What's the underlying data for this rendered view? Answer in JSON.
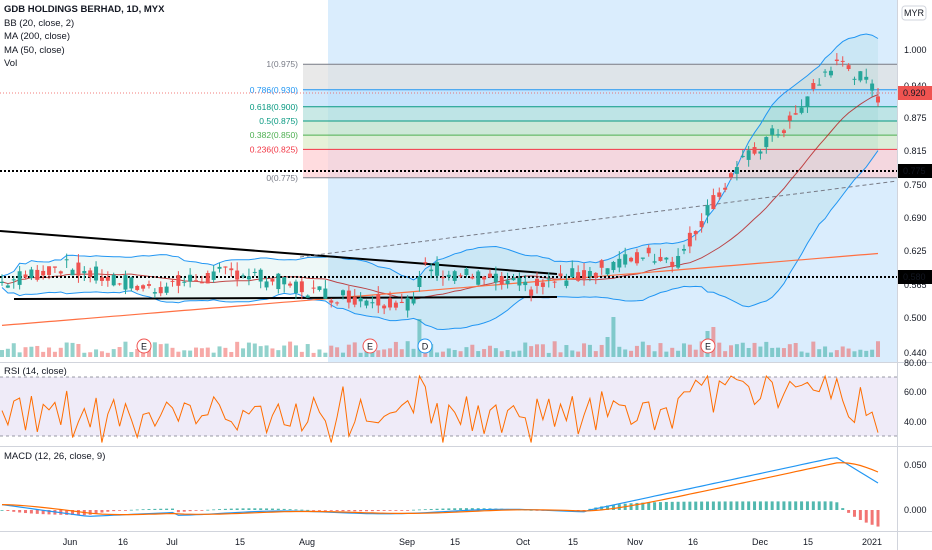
{
  "legend": {
    "symbol": "GDB HOLDINGS BERHAD, 1D, MYX",
    "bb": "BB (20, close, 2)",
    "ma200": "MA (200, close)",
    "ma50": "MA (50, close)",
    "vol": "Vol"
  },
  "currency_badge": "MYR",
  "rsi_label": "RSI (14, close)",
  "macd_label": "MACD (12, 26, close, 9)",
  "chart_data": {
    "type": "candlestick",
    "price_axis": {
      "ticks": [
        "1.000",
        "0.940",
        "0.875",
        "0.815",
        "0.750",
        "0.690",
        "0.625",
        "0.565",
        "0.500",
        "0.440"
      ],
      "range": [
        0.44,
        1.04
      ]
    },
    "last_price": "0.920",
    "support_level": "0.775",
    "support_level_2": "0.580",
    "x_ticks": [
      "Jun",
      "16",
      "Jul",
      "15",
      "Aug",
      "Sep",
      "15",
      "Oct",
      "15",
      "Nov",
      "16",
      "Dec",
      "15",
      "2021"
    ],
    "fib_levels": [
      {
        "label": "1(0.975)",
        "value": 0.975,
        "color": "#787b86"
      },
      {
        "label": "0.786(0.930)",
        "value": 0.93,
        "color": "#2196f3"
      },
      {
        "label": "0.618(0.900)",
        "value": 0.9,
        "color": "#089981"
      },
      {
        "label": "0.5(0.875)",
        "value": 0.875,
        "color": "#089981"
      },
      {
        "label": "0.382(0.850)",
        "value": 0.85,
        "color": "#4caf50"
      },
      {
        "label": "0.236(0.825)",
        "value": 0.825,
        "color": "#f23645"
      },
      {
        "label": "0(0.775)",
        "value": 0.775,
        "color": "#787b86"
      }
    ],
    "event_markers": [
      "E",
      "E",
      "D",
      "E"
    ],
    "rsi_axis": [
      "80.00",
      "60.00",
      "40.00"
    ],
    "macd_axis": [
      "0.050",
      "0.000"
    ],
    "colors": {
      "up": "#26a69a",
      "down": "#ef5350",
      "ma200": "#f7525f",
      "ma50": "#ff7f3f",
      "bb": "#2196f3",
      "rsi": "#ff6d00",
      "macd": "#2196f3",
      "signal": "#ff6d00"
    }
  }
}
